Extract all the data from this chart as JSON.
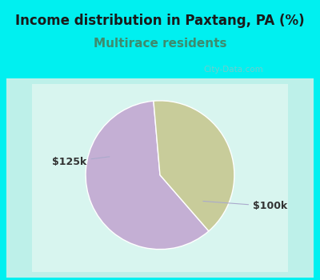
{
  "title": "Income distribution in Paxtang, PA (%)",
  "subtitle": "Multirace residents",
  "slices": [
    {
      "label": "$100k",
      "value": 60,
      "color": "#c4afd4"
    },
    {
      "label": "$125k",
      "value": 40,
      "color": "#c8cc9a"
    }
  ],
  "title_fontsize": 12,
  "subtitle_fontsize": 11,
  "title_color": "#1a1a1a",
  "subtitle_color": "#3d8b6e",
  "title_bg_color": "#00f0f0",
  "chart_bg_color": "#e8f5ee",
  "label_fontsize": 9,
  "label_color": "#333333",
  "watermark": "City-Data.com",
  "watermark_color": "#aabbbb",
  "startangle": 95
}
